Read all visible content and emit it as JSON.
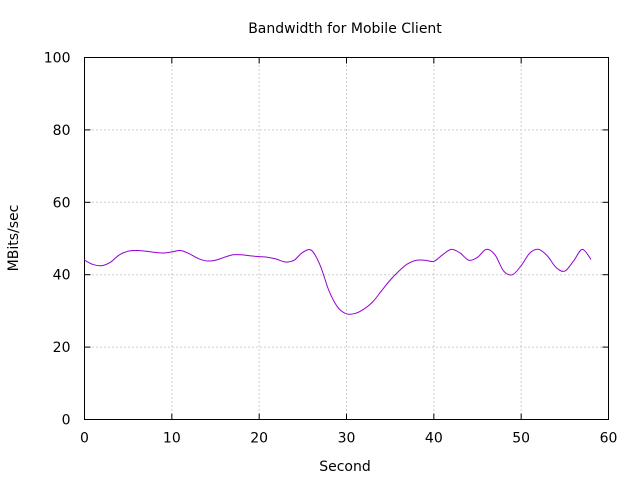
{
  "chart_data": {
    "type": "line",
    "title": "Bandwidth for Mobile Client",
    "xlabel": "Second",
    "ylabel": "MBits/sec",
    "xlim": [
      0,
      60
    ],
    "ylim": [
      0,
      100
    ],
    "xticks": [
      0,
      10,
      20,
      30,
      40,
      50,
      60
    ],
    "yticks": [
      0,
      20,
      40,
      60,
      80,
      100
    ],
    "grid": true,
    "colors": {
      "series": "#9400d3",
      "grid": "#a0a0a0",
      "axes": "#000000"
    },
    "series": [
      {
        "x": [
          0,
          1,
          2,
          3,
          4,
          5,
          6,
          7,
          8,
          9,
          10,
          11,
          12,
          13,
          14,
          15,
          16,
          17,
          18,
          19,
          20,
          21,
          22,
          23,
          24,
          25,
          26,
          27,
          28,
          29,
          30,
          31,
          32,
          33,
          34,
          35,
          36,
          37,
          38,
          39,
          40,
          41,
          42,
          43,
          44,
          45,
          46,
          47,
          48,
          49,
          50,
          51,
          52,
          53,
          54,
          55,
          56,
          57,
          58
        ],
        "values": [
          44,
          42.8,
          42.5,
          43.5,
          45.5,
          46.5,
          46.7,
          46.5,
          46.2,
          46,
          46.3,
          46.7,
          45.8,
          44.5,
          43.8,
          44,
          44.8,
          45.5,
          45.5,
          45.2,
          45,
          44.8,
          44.3,
          43.5,
          44,
          46.2,
          46.7,
          42.5,
          35.5,
          31,
          29.2,
          29.3,
          30.5,
          32.5,
          35.5,
          38.5,
          41,
          43,
          44,
          44,
          43.7,
          45.5,
          47,
          46,
          44,
          44.8,
          47,
          45.5,
          41,
          40,
          42.5,
          46,
          47,
          45.2,
          42,
          41,
          43.8,
          47,
          44.2
        ]
      }
    ]
  }
}
